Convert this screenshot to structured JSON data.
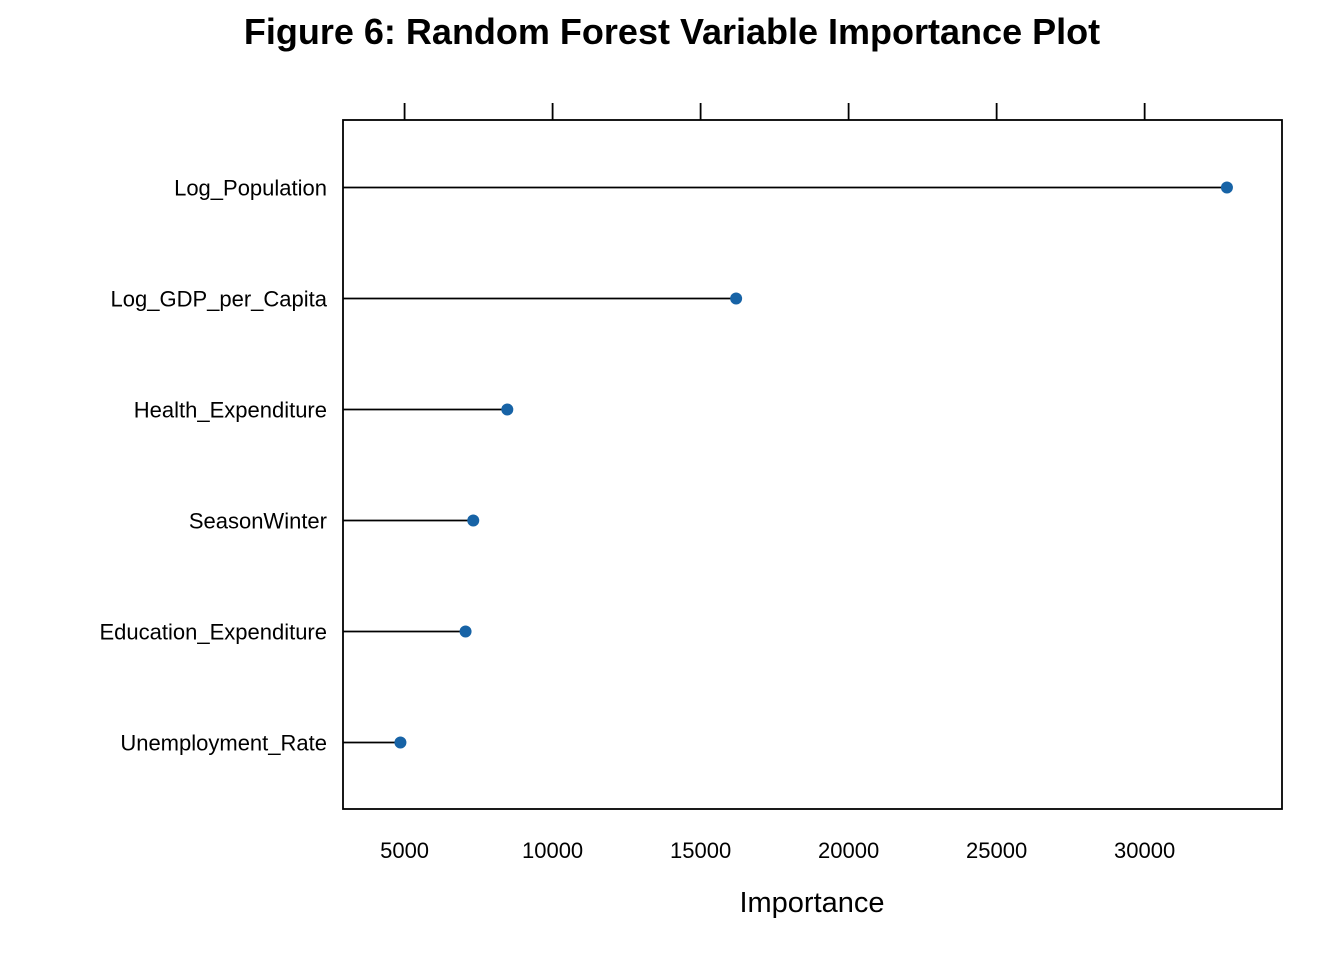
{
  "chart_data": {
    "type": "dot",
    "title": "Figure 6: Random Forest Variable Importance Plot",
    "xlabel": "Importance",
    "ylabel": "",
    "xlim": [
      2920,
      34640
    ],
    "xticks": [
      5000,
      10000,
      15000,
      20000,
      25000,
      30000
    ],
    "categories": [
      "Log_Population",
      "Log_GDP_per_Capita",
      "Health_Expenditure",
      "SeasonWinter",
      "Education_Expenditure",
      "Unemployment_Rate"
    ],
    "values": [
      32780,
      16200,
      8470,
      7320,
      7060,
      4860
    ],
    "point_color": "#1763A6",
    "line_color": "#000000",
    "grid": false,
    "legend": "none"
  }
}
